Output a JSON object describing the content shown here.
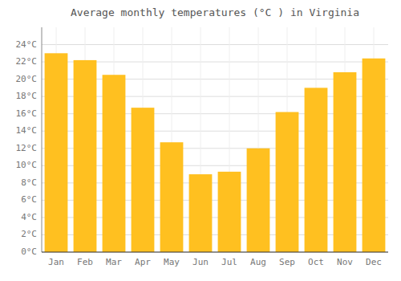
{
  "chart_data": {
    "type": "bar",
    "title": "Average monthly temperatures (°C ) in Virginia",
    "categories": [
      "Jan",
      "Feb",
      "Mar",
      "Apr",
      "May",
      "Jun",
      "Jul",
      "Aug",
      "Sep",
      "Oct",
      "Nov",
      "Dec"
    ],
    "values": [
      23.0,
      22.2,
      20.5,
      16.7,
      12.7,
      9.0,
      9.3,
      12.0,
      16.2,
      19.0,
      20.8,
      22.4
    ],
    "color": "#FFC020",
    "ylim": [
      0,
      26
    ],
    "yticks": [
      {
        "value": 0,
        "label": "0°C"
      },
      {
        "value": 2,
        "label": "2°C"
      },
      {
        "value": 4,
        "label": "4°C"
      },
      {
        "value": 6,
        "label": "6°C"
      },
      {
        "value": 8,
        "label": "8°C"
      },
      {
        "value": 10,
        "label": "10°C"
      },
      {
        "value": 12,
        "label": "12°C"
      },
      {
        "value": 14,
        "label": "14°C"
      },
      {
        "value": 16,
        "label": "16°C"
      },
      {
        "value": 18,
        "label": "18°C"
      },
      {
        "value": 20,
        "label": "20°C"
      },
      {
        "value": 22,
        "label": "22°C"
      },
      {
        "value": 24,
        "label": "24°C"
      }
    ],
    "grid": true
  }
}
